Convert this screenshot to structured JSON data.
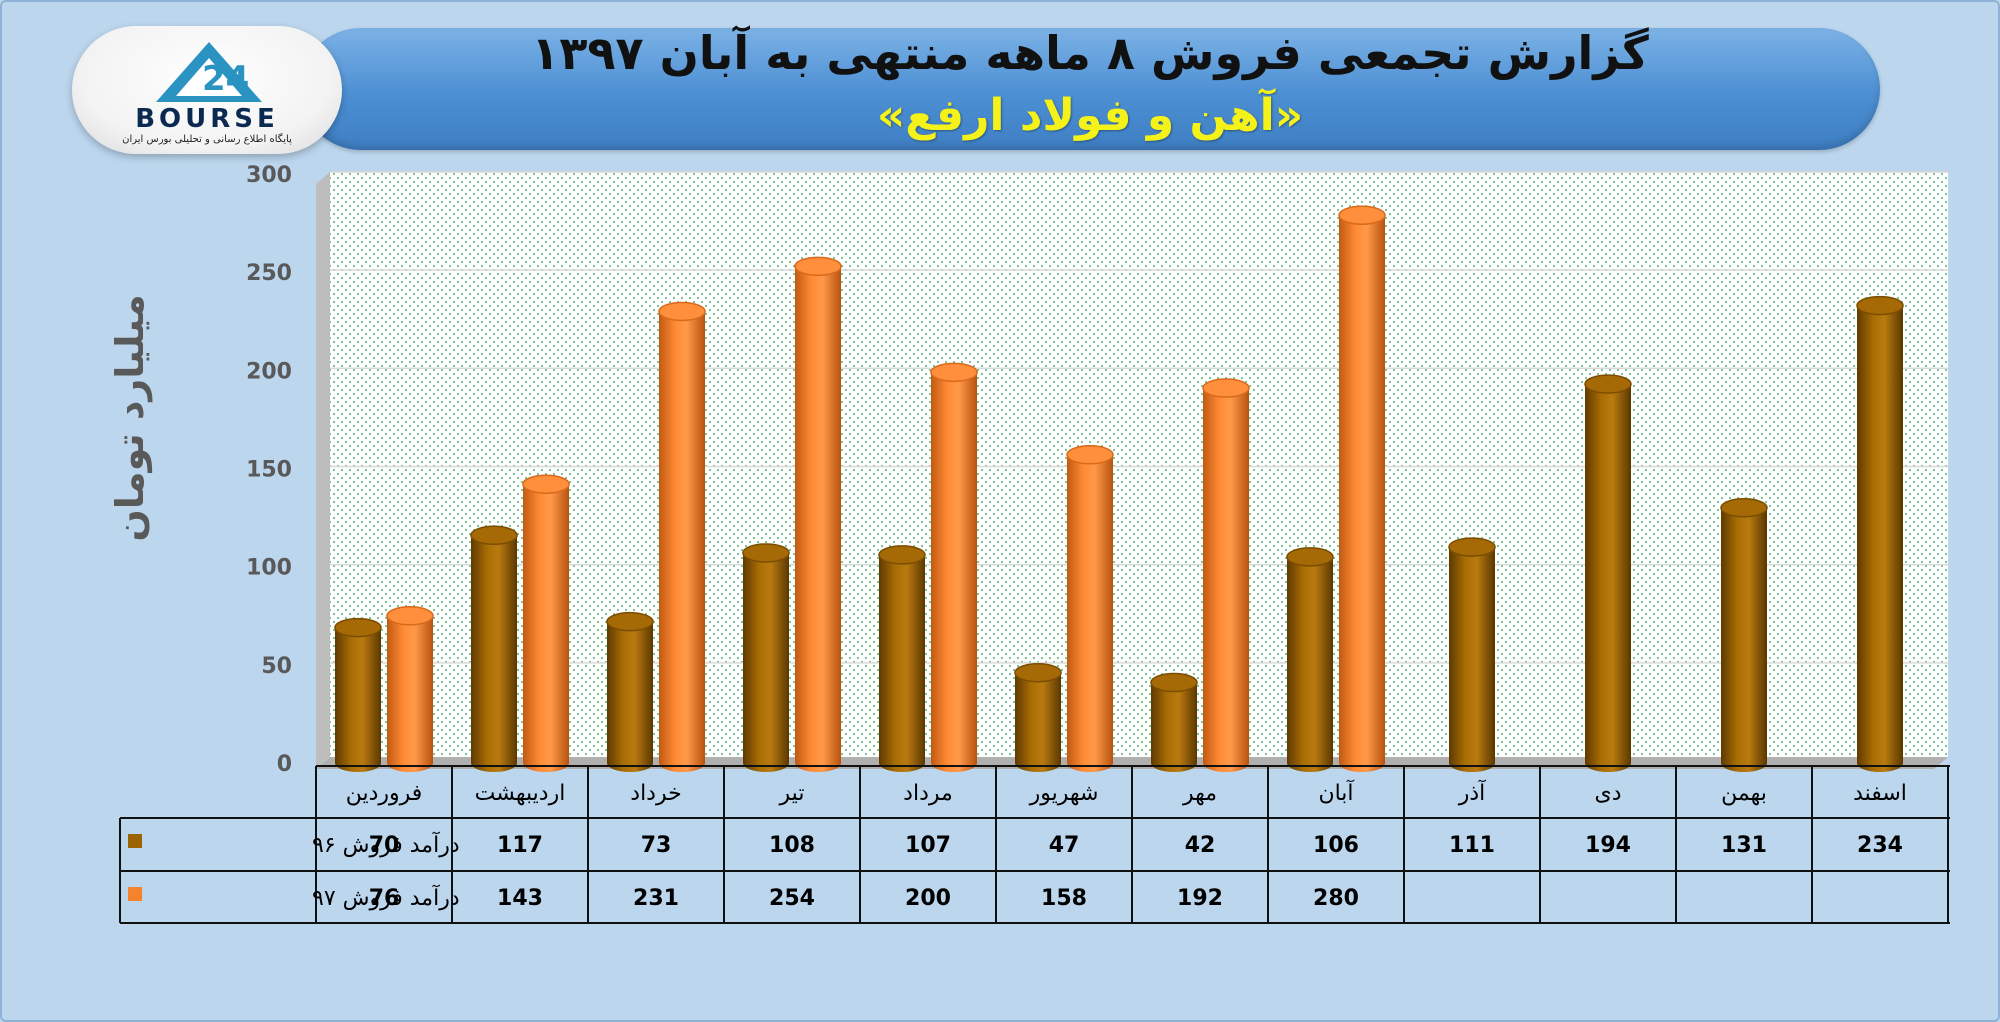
{
  "header": {
    "title": "گزارش تجمعی فروش ۸ ماهه منتهی به آبان ۱۳۹۷",
    "subtitle": "«آهن و فولاد ارفع»"
  },
  "logo": {
    "text": "BOURSE",
    "number": "24",
    "caption": "پایگاه اطلاع رسانی و تحلیلی بورس ایران"
  },
  "chart_data": {
    "type": "bar",
    "title": "گزارش تجمعی فروش ۸ ماهه منتهی به آبان ۱۳۹۷",
    "subtitle": "«آهن و فولاد ارفع»",
    "ylabel": "میلیارد تومان",
    "xlabel": "",
    "ylim": [
      0,
      300
    ],
    "yticks": [
      0,
      50,
      100,
      150,
      200,
      250,
      300
    ],
    "grid": true,
    "legend": "in data table (left)",
    "categories": [
      "فروردین",
      "اردیبهشت",
      "خرداد",
      "تیر",
      "مرداد",
      "شهریور",
      "مهر",
      "آبان",
      "آذر",
      "دی",
      "بهمن",
      "اسفند"
    ],
    "series": [
      {
        "name": "درآمد فروش ۹۶",
        "color": "#9c6400",
        "values": [
          70,
          117,
          73,
          108,
          107,
          47,
          42,
          106,
          111,
          194,
          131,
          234
        ]
      },
      {
        "name": "درآمد فروش ۹۷",
        "color": "#f5822d",
        "values": [
          76,
          143,
          231,
          254,
          200,
          158,
          192,
          280,
          null,
          null,
          null,
          null
        ]
      }
    ]
  }
}
